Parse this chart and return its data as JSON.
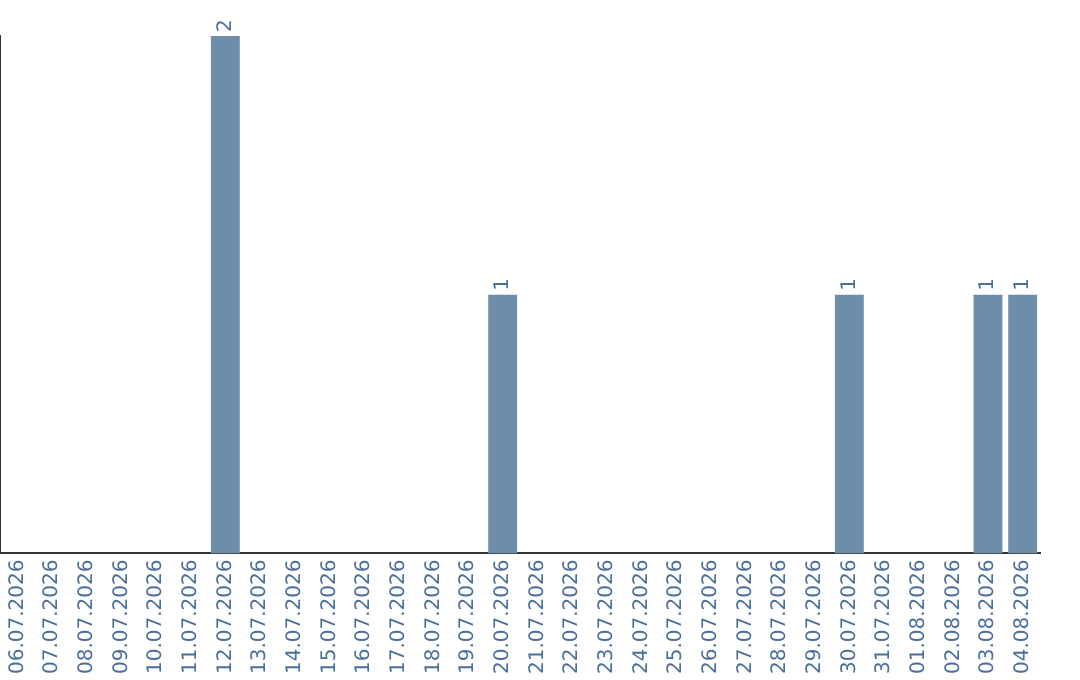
{
  "chart_data": {
    "type": "bar",
    "categories": [
      "06.07.2026",
      "07.07.2026",
      "08.07.2026",
      "09.07.2026",
      "10.07.2026",
      "11.07.2026",
      "12.07.2026",
      "13.07.2026",
      "14.07.2026",
      "15.07.2026",
      "16.07.2026",
      "17.07.2026",
      "18.07.2026",
      "19.07.2026",
      "20.07.2026",
      "21.07.2026",
      "22.07.2026",
      "23.07.2026",
      "24.07.2026",
      "25.07.2026",
      "26.07.2026",
      "27.07.2026",
      "28.07.2026",
      "29.07.2026",
      "30.07.2026",
      "31.07.2026",
      "01.08.2026",
      "02.08.2026",
      "03.08.2026",
      "04.08.2026"
    ],
    "values": [
      0,
      0,
      0,
      0,
      0,
      0,
      2,
      0,
      0,
      0,
      0,
      0,
      0,
      0,
      1,
      0,
      0,
      0,
      0,
      0,
      0,
      0,
      0,
      0,
      1,
      0,
      0,
      0,
      1,
      1
    ],
    "color": "#6e8dab",
    "value_labels": [
      null,
      null,
      null,
      null,
      null,
      null,
      "2",
      null,
      null,
      null,
      null,
      null,
      null,
      null,
      "1",
      null,
      null,
      null,
      null,
      null,
      null,
      null,
      null,
      null,
      "1",
      null,
      null,
      null,
      "1",
      "1"
    ],
    "grid": false,
    "legend": false
  }
}
